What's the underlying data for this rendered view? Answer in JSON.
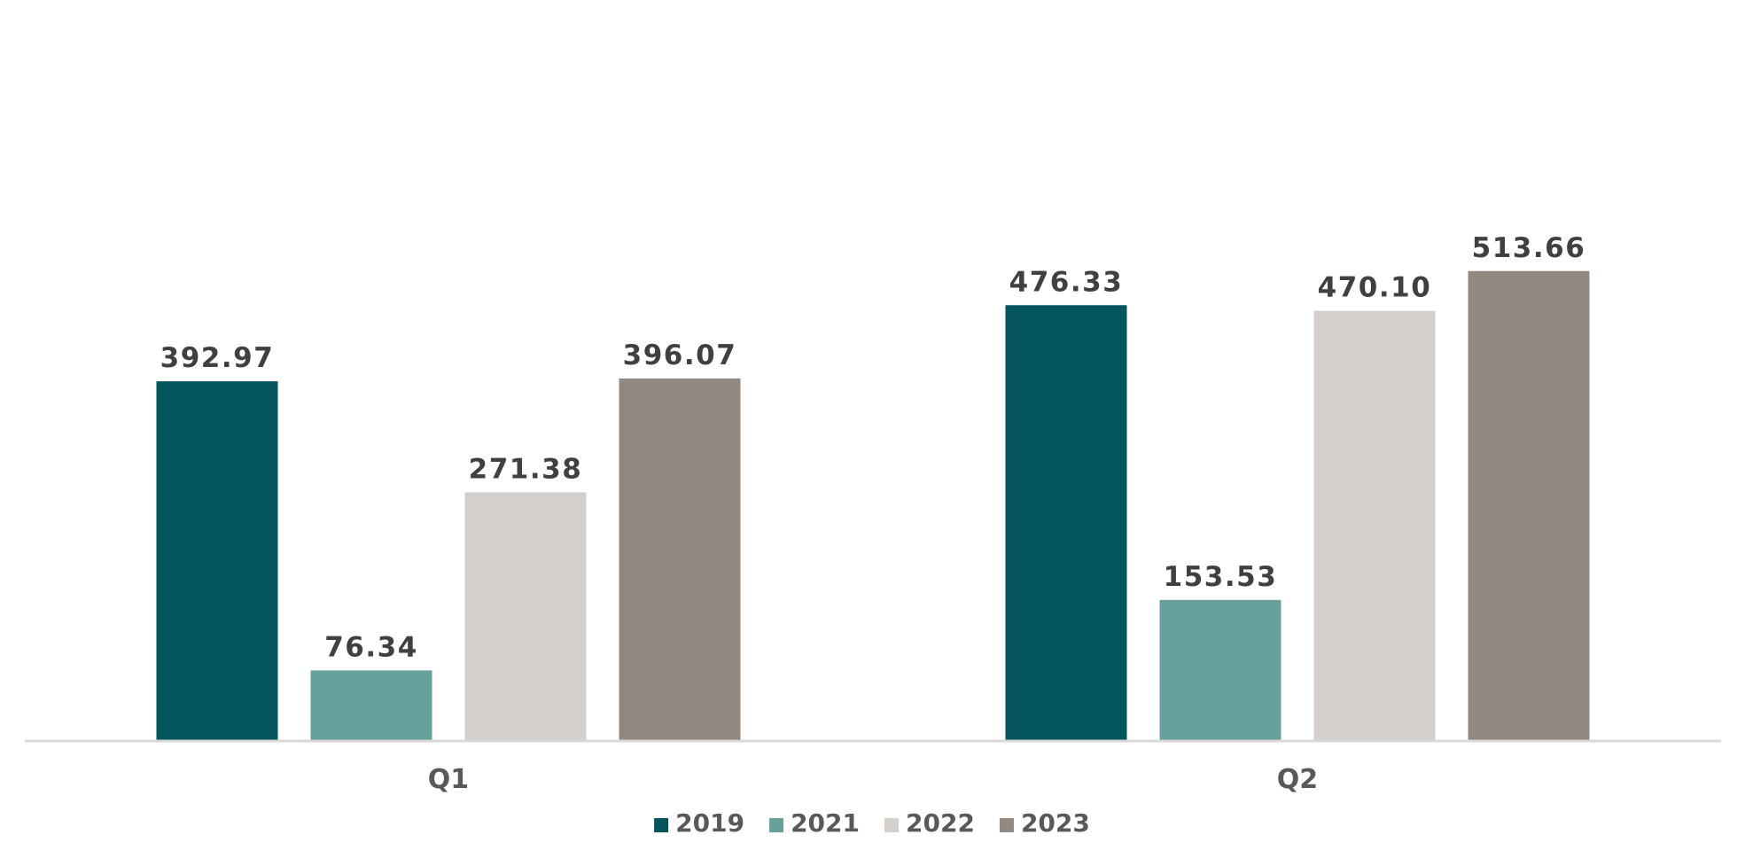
{
  "chart_data": {
    "type": "bar",
    "categories": [
      "Q1",
      "Q2"
    ],
    "series": [
      {
        "name": "2019",
        "color": "#03545c",
        "values": [
          392.97,
          476.33
        ],
        "labels": [
          "392.97",
          "476.33"
        ]
      },
      {
        "name": "2021",
        "color": "#68a09b",
        "values": [
          76.34,
          153.53
        ],
        "labels": [
          "76.34",
          "153.53"
        ]
      },
      {
        "name": "2022",
        "color": "#d2cfcc",
        "values": [
          271.38,
          470.1
        ],
        "labels": [
          "271.38",
          "470.10"
        ]
      },
      {
        "name": "2023",
        "color": "#91887f",
        "values": [
          396.07,
          513.66
        ],
        "labels": [
          "396.07",
          "513.66"
        ]
      }
    ],
    "ylim": [
      0,
      600
    ],
    "grid": false,
    "legend": "bottom-center",
    "axis_color": "#d9d9d9"
  }
}
